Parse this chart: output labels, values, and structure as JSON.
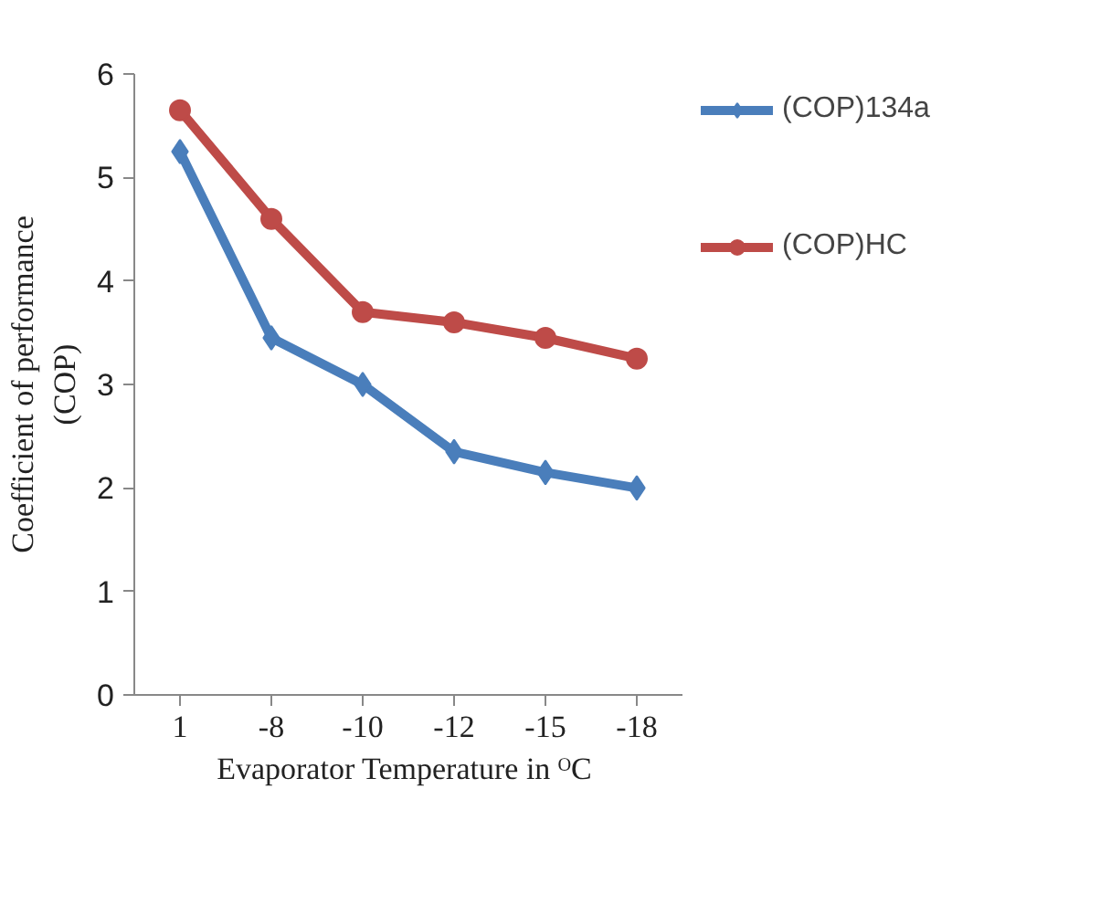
{
  "chart_data": {
    "type": "line",
    "xlabel": "Evaporator Temperature  in ᴼC",
    "ylabel": "Coefficient of performance\n(COP)",
    "categories": [
      "1",
      "-8",
      "-10",
      "-12",
      "-15",
      "-18"
    ],
    "series": [
      {
        "name": "(COP)134a",
        "color": "#4a7ebb",
        "marker": "diamond",
        "values": [
          5.25,
          3.45,
          3.0,
          2.35,
          2.15,
          2.0
        ]
      },
      {
        "name": "(COP)HC",
        "color": "#be4b48",
        "marker": "circle",
        "values": [
          5.65,
          4.6,
          3.7,
          3.6,
          3.45,
          3.25
        ]
      }
    ],
    "ylim": [
      0,
      6
    ],
    "yticks": [
      0,
      1,
      2,
      3,
      4,
      5,
      6
    ],
    "legend": "right"
  }
}
